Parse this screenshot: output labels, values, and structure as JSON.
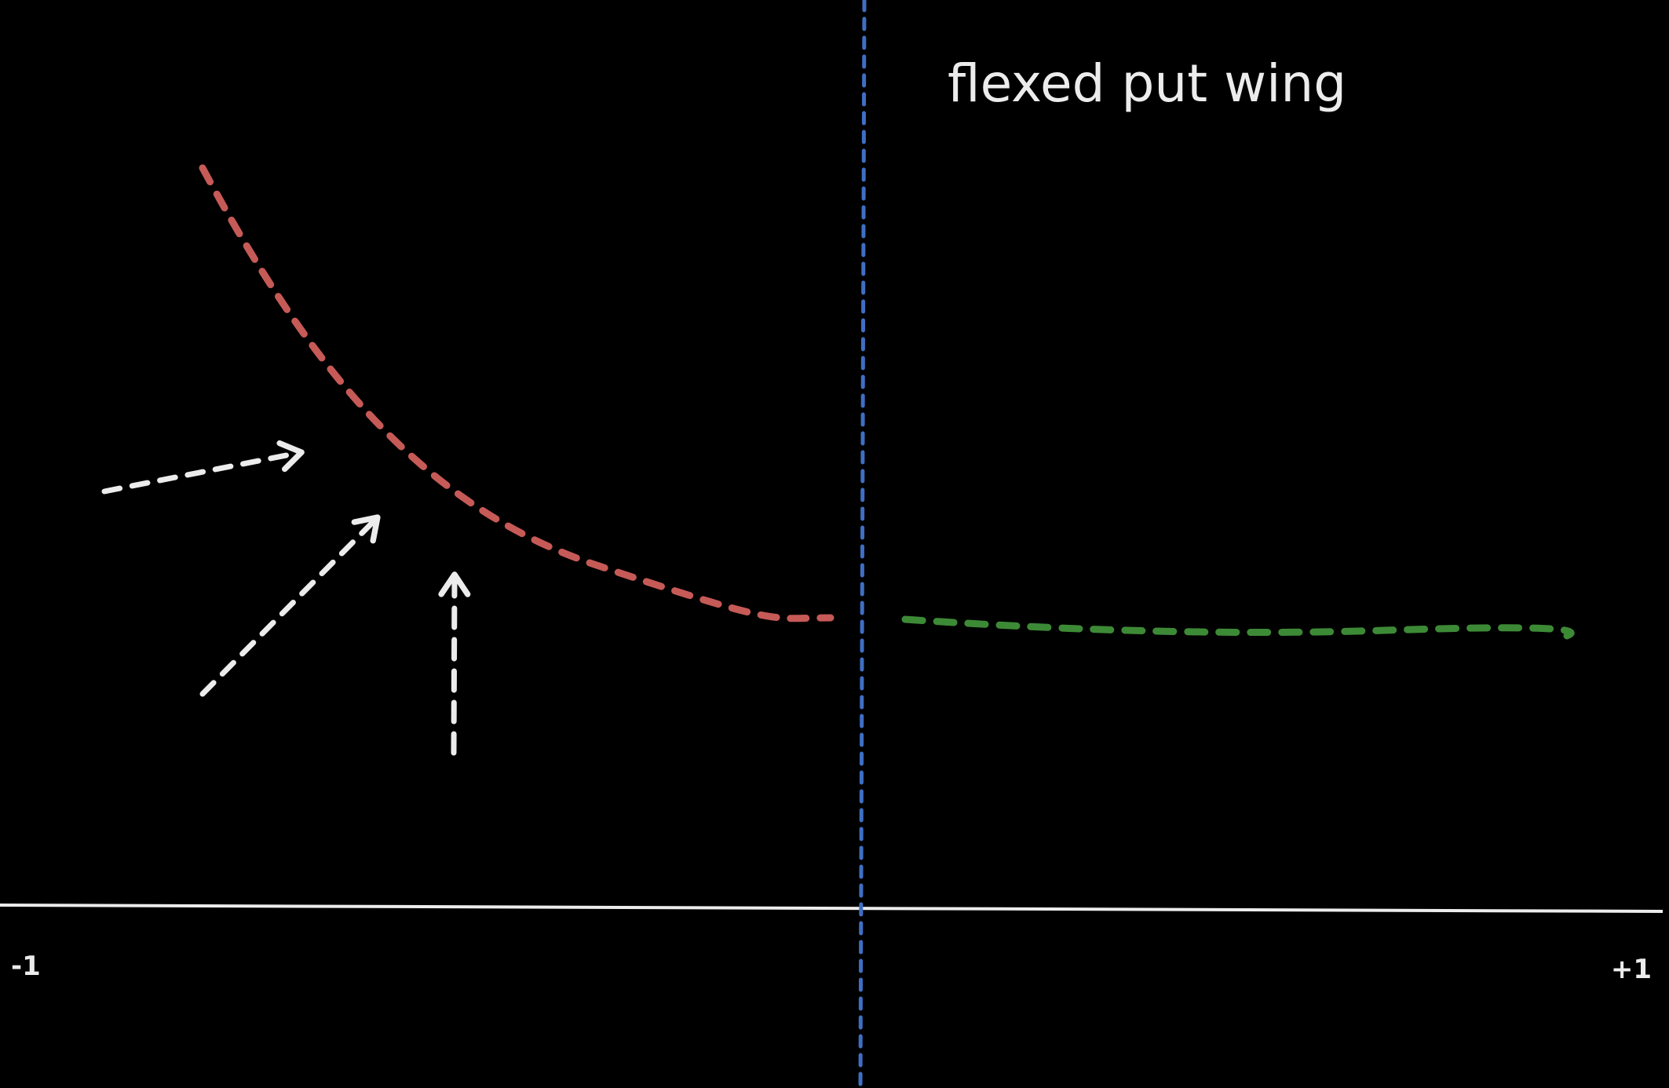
{
  "header": {
    "title": "flexed put wing"
  },
  "axis": {
    "left_label": "-1",
    "right_label": "+1"
  }
}
